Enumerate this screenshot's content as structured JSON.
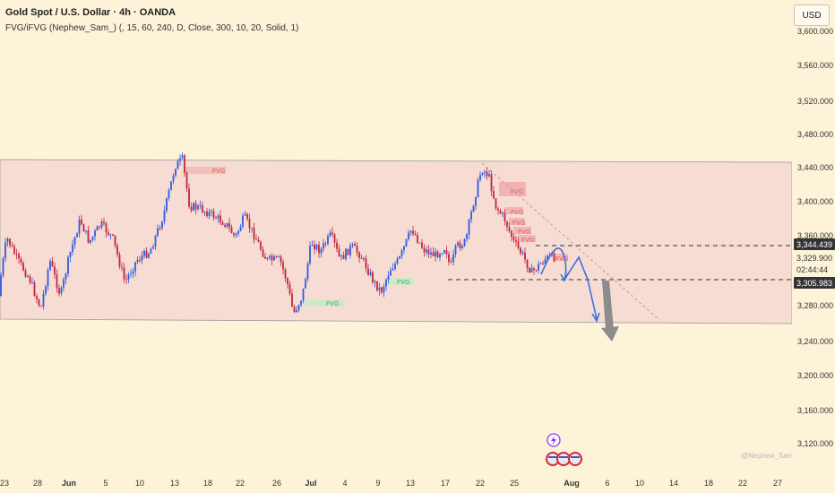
{
  "header": {
    "title": "Gold Spot / U.S. Dollar · 4h · OANDA",
    "indicator": "FVG/iFVG (Nephew_Sam_) (, 15, 60, 240, D, Close, 300, 10, 20, Solid, 1)"
  },
  "currency_button": "USD",
  "price_axis": {
    "ticks": [
      "3,600.000",
      "3,560.000",
      "3,520.000",
      "3,480.000",
      "3,440.000",
      "3,400.000",
      "3,360.000",
      "3,320.000",
      "3,280.000",
      "3,240.000",
      "3,200.000",
      "3,160.000",
      "3,120.000"
    ],
    "price_tags": [
      {
        "text": "3,344.439",
        "style": "dark"
      },
      {
        "text": "3,329.900",
        "style": "light"
      },
      {
        "text": "02:44:44",
        "style": "light"
      },
      {
        "text": "3,305.983",
        "style": "dark"
      }
    ]
  },
  "time_axis": {
    "labels": [
      {
        "text": "23",
        "bold": false
      },
      {
        "text": "28",
        "bold": false
      },
      {
        "text": "Jun",
        "bold": true
      },
      {
        "text": "5",
        "bold": false
      },
      {
        "text": "10",
        "bold": false
      },
      {
        "text": "13",
        "bold": false
      },
      {
        "text": "18",
        "bold": false
      },
      {
        "text": "22",
        "bold": false
      },
      {
        "text": "26",
        "bold": false
      },
      {
        "text": "Jul",
        "bold": true
      },
      {
        "text": "4",
        "bold": false
      },
      {
        "text": "9",
        "bold": false
      },
      {
        "text": "13",
        "bold": false
      },
      {
        "text": "17",
        "bold": false
      },
      {
        "text": "22",
        "bold": false
      },
      {
        "text": "25",
        "bold": false
      },
      {
        "text": "Aug",
        "bold": true
      },
      {
        "text": "6",
        "bold": false
      },
      {
        "text": "10",
        "bold": false
      },
      {
        "text": "14",
        "bold": false
      },
      {
        "text": "18",
        "bold": false
      },
      {
        "text": "22",
        "bold": false
      },
      {
        "text": "27",
        "bold": false
      }
    ]
  },
  "fvg_labels": [
    "FVG",
    "FVG",
    "FVG",
    "FVG",
    "FVG",
    "FVG",
    "FVG",
    "FVG",
    "FVG"
  ],
  "watermark": "@Nephew_Sam_",
  "colors": {
    "background": "#fdf3d8",
    "channel_fill": "#f6dcd2",
    "bull": "#2d5be3",
    "bear": "#c4253d",
    "fvg_bear_text": "#e05a5a",
    "fvg_bull_text": "#1bb55a",
    "projection": "#3b6fe0",
    "grey_arrow": "#8c8c8c"
  },
  "icons": [
    "lightning-event-icon",
    "us-flag-event-icon"
  ]
}
